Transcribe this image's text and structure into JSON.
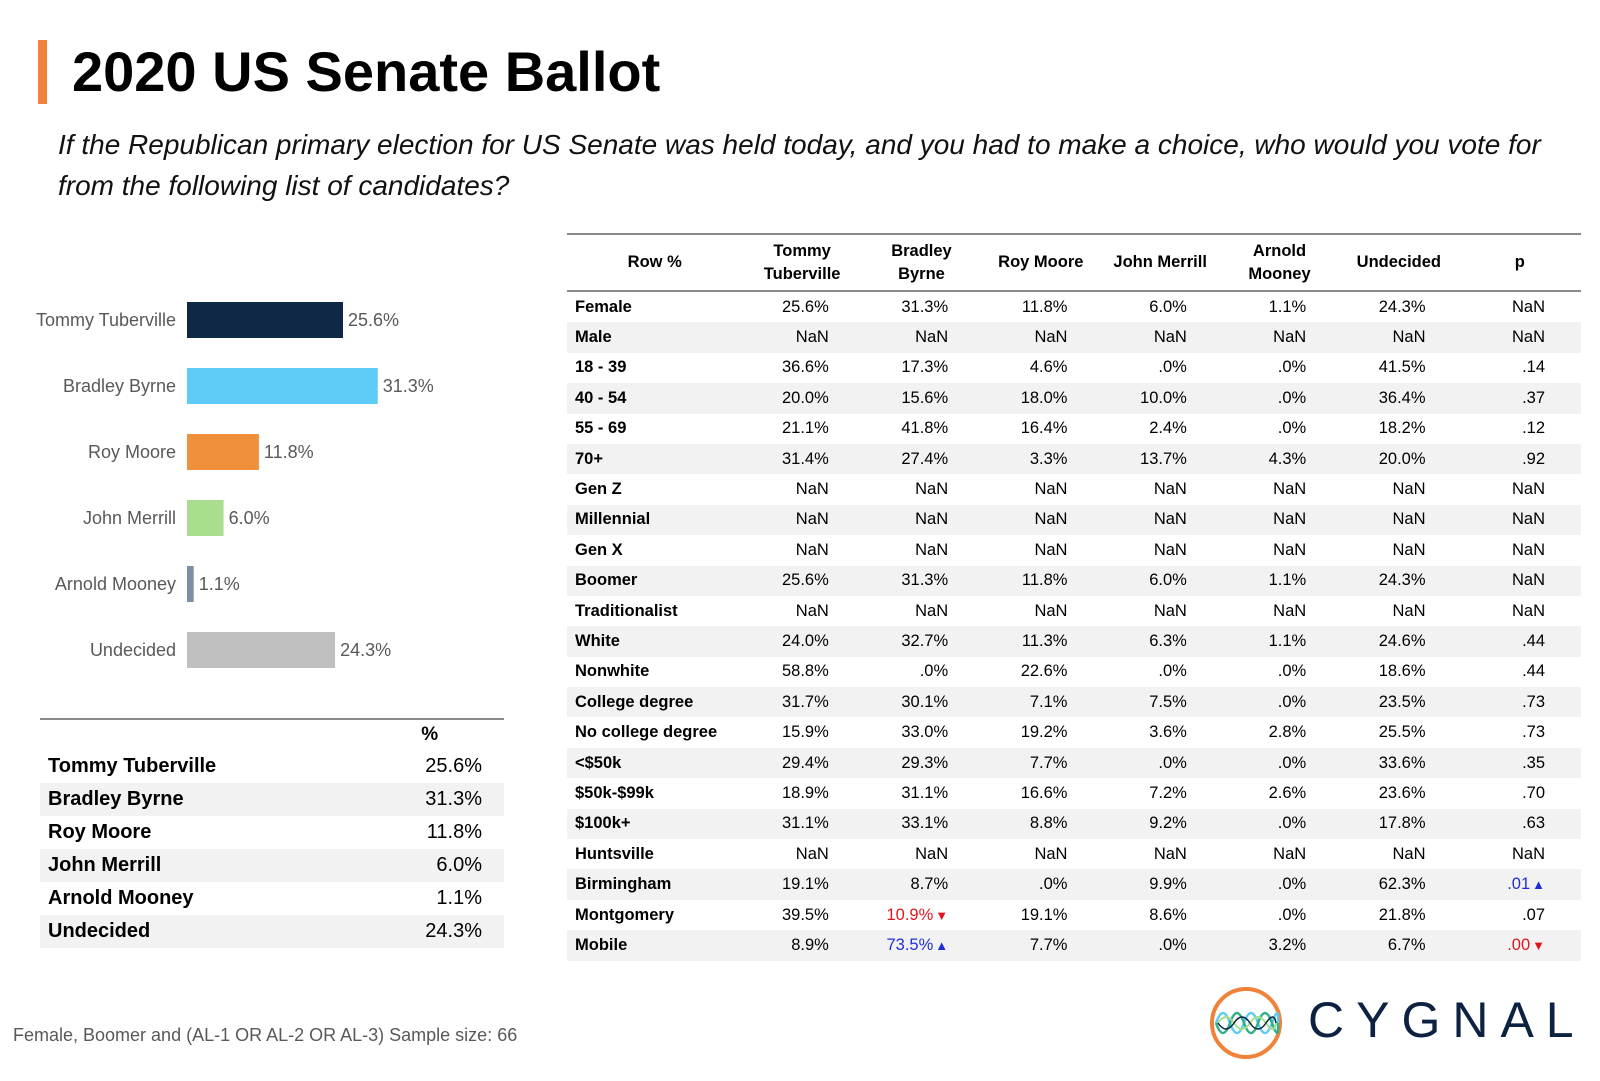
{
  "title": "2020 US Senate Ballot",
  "question": "If the Republican primary election for US Senate was held today, and you had to make a choice, who would you vote for from the following list of candidates?",
  "chart_data": {
    "type": "bar",
    "orientation": "horizontal",
    "categories": [
      "Tommy Tuberville",
      "Bradley Byrne",
      "Roy Moore",
      "John Merrill",
      "Arnold Mooney",
      "Undecided"
    ],
    "values": [
      25.6,
      31.3,
      11.8,
      6.0,
      1.1,
      24.3
    ],
    "labels": [
      "25.6%",
      "31.3%",
      "11.8%",
      "6.0%",
      "1.1%",
      "24.3%"
    ],
    "colors": [
      "#0f2846",
      "#5ecbf6",
      "#f08f3c",
      "#a8de8e",
      "#7d8fa6",
      "#c0c0c0"
    ],
    "title": "",
    "xlabel": "",
    "ylabel": "",
    "xlim": [
      0,
      100
    ]
  },
  "summary_table": {
    "header": "%",
    "rows": [
      {
        "name": "Tommy Tuberville",
        "value": "25.6%"
      },
      {
        "name": "Bradley Byrne",
        "value": "31.3%"
      },
      {
        "name": "Roy Moore",
        "value": "11.8%"
      },
      {
        "name": "John Merrill",
        "value": "6.0%"
      },
      {
        "name": "Arnold Mooney",
        "value": "1.1%"
      },
      {
        "name": "Undecided",
        "value": "24.3%"
      }
    ]
  },
  "crosstab": {
    "headers": [
      "Row %",
      "Tommy Tuberville",
      "Bradley Byrne",
      "Roy Moore",
      "John Merrill",
      "Arnold Mooney",
      "Undecided",
      "p"
    ],
    "rows": [
      [
        "Female",
        "25.6%",
        "31.3%",
        "11.8%",
        "6.0%",
        "1.1%",
        "24.3%",
        "NaN"
      ],
      [
        "Male",
        "NaN",
        "NaN",
        "NaN",
        "NaN",
        "NaN",
        "NaN",
        "NaN"
      ],
      [
        "18 - 39",
        "36.6%",
        "17.3%",
        "4.6%",
        ".0%",
        ".0%",
        "41.5%",
        ".14"
      ],
      [
        "40 - 54",
        "20.0%",
        "15.6%",
        "18.0%",
        "10.0%",
        ".0%",
        "36.4%",
        ".37"
      ],
      [
        "55 - 69",
        "21.1%",
        "41.8%",
        "16.4%",
        "2.4%",
        ".0%",
        "18.2%",
        ".12"
      ],
      [
        "70+",
        "31.4%",
        "27.4%",
        "3.3%",
        "13.7%",
        "4.3%",
        "20.0%",
        ".92"
      ],
      [
        "Gen Z",
        "NaN",
        "NaN",
        "NaN",
        "NaN",
        "NaN",
        "NaN",
        "NaN"
      ],
      [
        "Millennial",
        "NaN",
        "NaN",
        "NaN",
        "NaN",
        "NaN",
        "NaN",
        "NaN"
      ],
      [
        "Gen X",
        "NaN",
        "NaN",
        "NaN",
        "NaN",
        "NaN",
        "NaN",
        "NaN"
      ],
      [
        "Boomer",
        "25.6%",
        "31.3%",
        "11.8%",
        "6.0%",
        "1.1%",
        "24.3%",
        "NaN"
      ],
      [
        "Traditionalist",
        "NaN",
        "NaN",
        "NaN",
        "NaN",
        "NaN",
        "NaN",
        "NaN"
      ],
      [
        "White",
        "24.0%",
        "32.7%",
        "11.3%",
        "6.3%",
        "1.1%",
        "24.6%",
        ".44"
      ],
      [
        "Nonwhite",
        "58.8%",
        ".0%",
        "22.6%",
        ".0%",
        ".0%",
        "18.6%",
        ".44"
      ],
      [
        "College degree",
        "31.7%",
        "30.1%",
        "7.1%",
        "7.5%",
        ".0%",
        "23.5%",
        ".73"
      ],
      [
        "No college degree",
        "15.9%",
        "33.0%",
        "19.2%",
        "3.6%",
        "2.8%",
        "25.5%",
        ".73"
      ],
      [
        "<$50k",
        "29.4%",
        "29.3%",
        "7.7%",
        ".0%",
        ".0%",
        "33.6%",
        ".35"
      ],
      [
        "$50k-$99k",
        "18.9%",
        "31.1%",
        "16.6%",
        "7.2%",
        "2.6%",
        "23.6%",
        ".70"
      ],
      [
        "$100k+",
        "31.1%",
        "33.1%",
        "8.8%",
        "9.2%",
        ".0%",
        "17.8%",
        ".63"
      ],
      [
        "Huntsville",
        "NaN",
        "NaN",
        "NaN",
        "NaN",
        "NaN",
        "NaN",
        "NaN"
      ],
      [
        "Birmingham",
        "19.1%",
        "8.7%",
        ".0%",
        "9.9%",
        ".0%",
        "62.3%",
        ".01"
      ],
      [
        "Montgomery",
        "39.5%",
        "10.9%",
        "19.1%",
        "8.6%",
        ".0%",
        "21.8%",
        ".07"
      ],
      [
        "Mobile",
        "8.9%",
        "73.5%",
        "7.7%",
        ".0%",
        "3.2%",
        "6.7%",
        ".00"
      ]
    ],
    "highlights": [
      {
        "row": 19,
        "col": 7,
        "direction": "up"
      },
      {
        "row": 20,
        "col": 2,
        "direction": "down"
      },
      {
        "row": 21,
        "col": 2,
        "direction": "up"
      },
      {
        "row": 21,
        "col": 7,
        "direction": "down"
      }
    ]
  },
  "footer": "Female, Boomer and (AL-1 OR AL-2 OR AL-3) Sample size: 66",
  "logo_text": "CYGNAL",
  "colors": {
    "accent": "#f0823a",
    "sig_up": "#1f2fd6",
    "sig_down": "#e0161e",
    "logo_navy": "#0d2240"
  }
}
